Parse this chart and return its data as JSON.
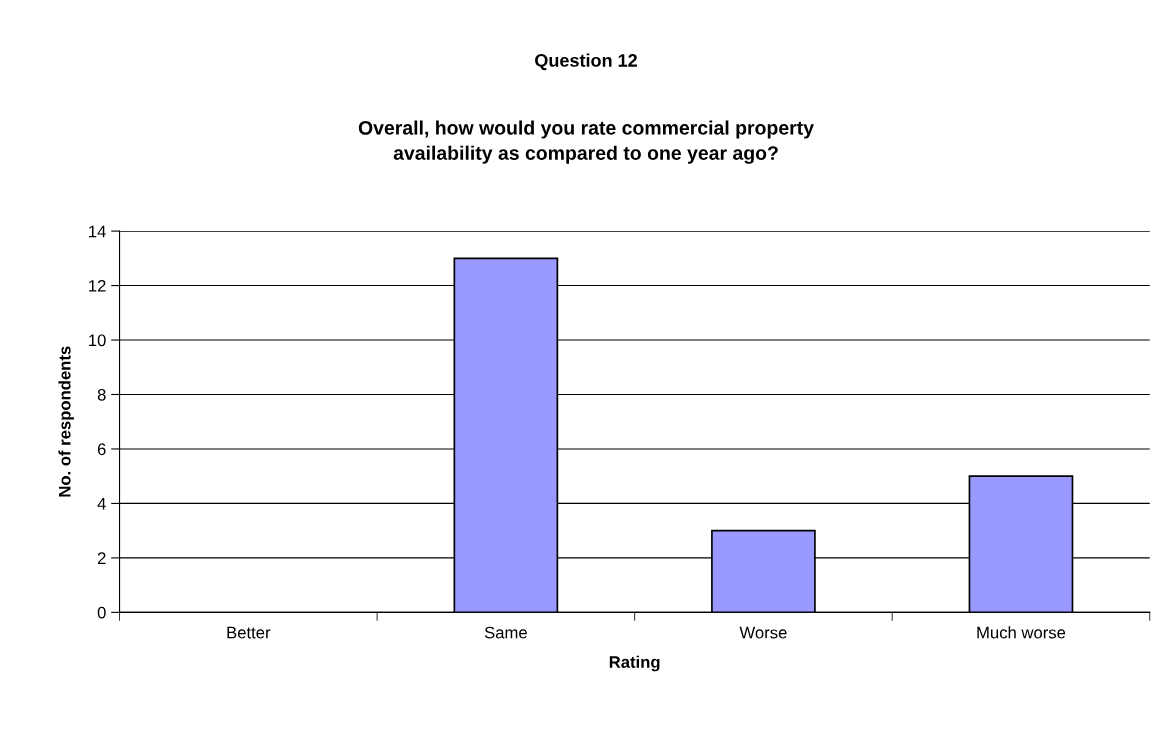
{
  "chart_data": {
    "type": "bar",
    "title": "Question 12",
    "subtitle": "Overall, how would you rate commercial property\navailability as compared to one year ago?",
    "xlabel": "Rating",
    "ylabel": "No. of respondents",
    "categories": [
      "Better",
      "Same",
      "Worse",
      "Much worse"
    ],
    "values": [
      0,
      13,
      3,
      5
    ],
    "color": "#9999ff",
    "ylim": [
      0,
      14
    ],
    "yticks": [
      0,
      2,
      4,
      6,
      8,
      10,
      12,
      14
    ],
    "grid": "y",
    "legend": false
  }
}
